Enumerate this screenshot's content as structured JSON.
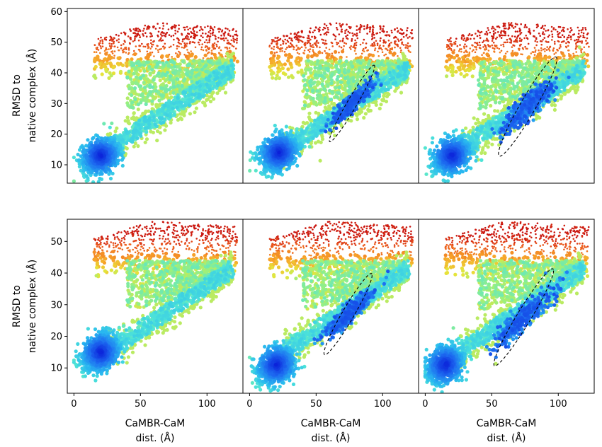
{
  "chart_data": {
    "type": "scatter",
    "layout": "2 rows x 3 columns, shared axes",
    "xlabel_lines": [
      "CaMBR-CaM",
      "dist. (Å)"
    ],
    "ylabel_lines": [
      "RMSD to",
      "native complex (Å)"
    ],
    "x_ticks": [
      0,
      50,
      100
    ],
    "xlim": [
      -5,
      127
    ],
    "rows": [
      {
        "y_ticks": [
          10,
          20,
          30,
          40,
          50,
          60
        ],
        "ylim": [
          4,
          61
        ]
      },
      {
        "y_ticks": [
          10,
          20,
          30,
          40,
          50
        ],
        "ylim": [
          2,
          57
        ]
      }
    ],
    "color_scale": [
      "#0a1dd8",
      "#1d6af0",
      "#29b8f0",
      "#4ee4d8",
      "#9cf07c",
      "#e6e43a",
      "#f7a52a",
      "#ec5a1c",
      "#c9140f"
    ],
    "colormap": "jet (density: blue = high, red = low)",
    "panels": [
      {
        "row": 0,
        "col": 0,
        "ellipse": null,
        "dense_center": [
          20,
          13
        ]
      },
      {
        "row": 0,
        "col": 1,
        "ellipse": {
          "center": [
            77,
            30
          ],
          "semi_major": 21,
          "semi_minor": 2.5,
          "angle_deg": 36
        },
        "dense_center": [
          22,
          14
        ]
      },
      {
        "row": 0,
        "col": 2,
        "ellipse": {
          "center": [
            77,
            29
          ],
          "semi_major": 27,
          "semi_minor": 4,
          "angle_deg": 36
        },
        "dense_center": [
          20,
          13
        ]
      },
      {
        "row": 1,
        "col": 0,
        "ellipse": null,
        "dense_center": [
          20,
          15
        ]
      },
      {
        "row": 1,
        "col": 1,
        "ellipse": {
          "center": [
            74,
            27
          ],
          "semi_major": 22,
          "semi_minor": 3,
          "angle_deg": 35
        },
        "dense_center": [
          20,
          11
        ]
      },
      {
        "row": 1,
        "col": 2,
        "ellipse": {
          "center": [
            74,
            26
          ],
          "semi_major": 27,
          "semi_minor": 3.5,
          "angle_deg": 34
        },
        "dense_center": [
          15,
          11
        ]
      }
    ]
  }
}
